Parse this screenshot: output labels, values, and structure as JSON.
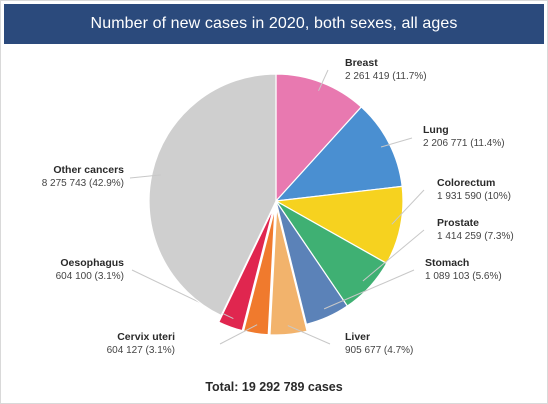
{
  "chart_data": {
    "type": "pie",
    "title": "Number of new cases in 2020, both sexes, all ages",
    "total_label": "Total: 19 292 789 cases",
    "slices": [
      {
        "name": "Breast",
        "value": 2261419,
        "value_text": "2 261 419 (11.7%)",
        "color": "#e879b0"
      },
      {
        "name": "Lung",
        "value": 2206771,
        "value_text": "2 206 771 (11.4%)",
        "color": "#4a8fd1"
      },
      {
        "name": "Colorectum",
        "value": 1931590,
        "value_text": "1 931 590 (10%)",
        "color": "#f6d21f"
      },
      {
        "name": "Prostate",
        "value": 1414259,
        "value_text": "1 414 259 (7.3%)",
        "color": "#3fb073"
      },
      {
        "name": "Stomach",
        "value": 1089103,
        "value_text": "1 089 103 (5.6%)",
        "color": "#5b82b8"
      },
      {
        "name": "Liver",
        "value": 905677,
        "value_text": "905 677 (4.7%)",
        "color": "#f2b36c"
      },
      {
        "name": "Cervix uteri",
        "value": 604127,
        "value_text": "604 127 (3.1%)",
        "color": "#f07a2d"
      },
      {
        "name": "Oesophagus",
        "value": 604100,
        "value_text": "604 100 (3.1%)",
        "color": "#e0264f"
      },
      {
        "name": "Other cancers",
        "value": 8275743,
        "value_text": "8 275 743 (42.9%)",
        "color": "#cfcfcf"
      }
    ]
  }
}
